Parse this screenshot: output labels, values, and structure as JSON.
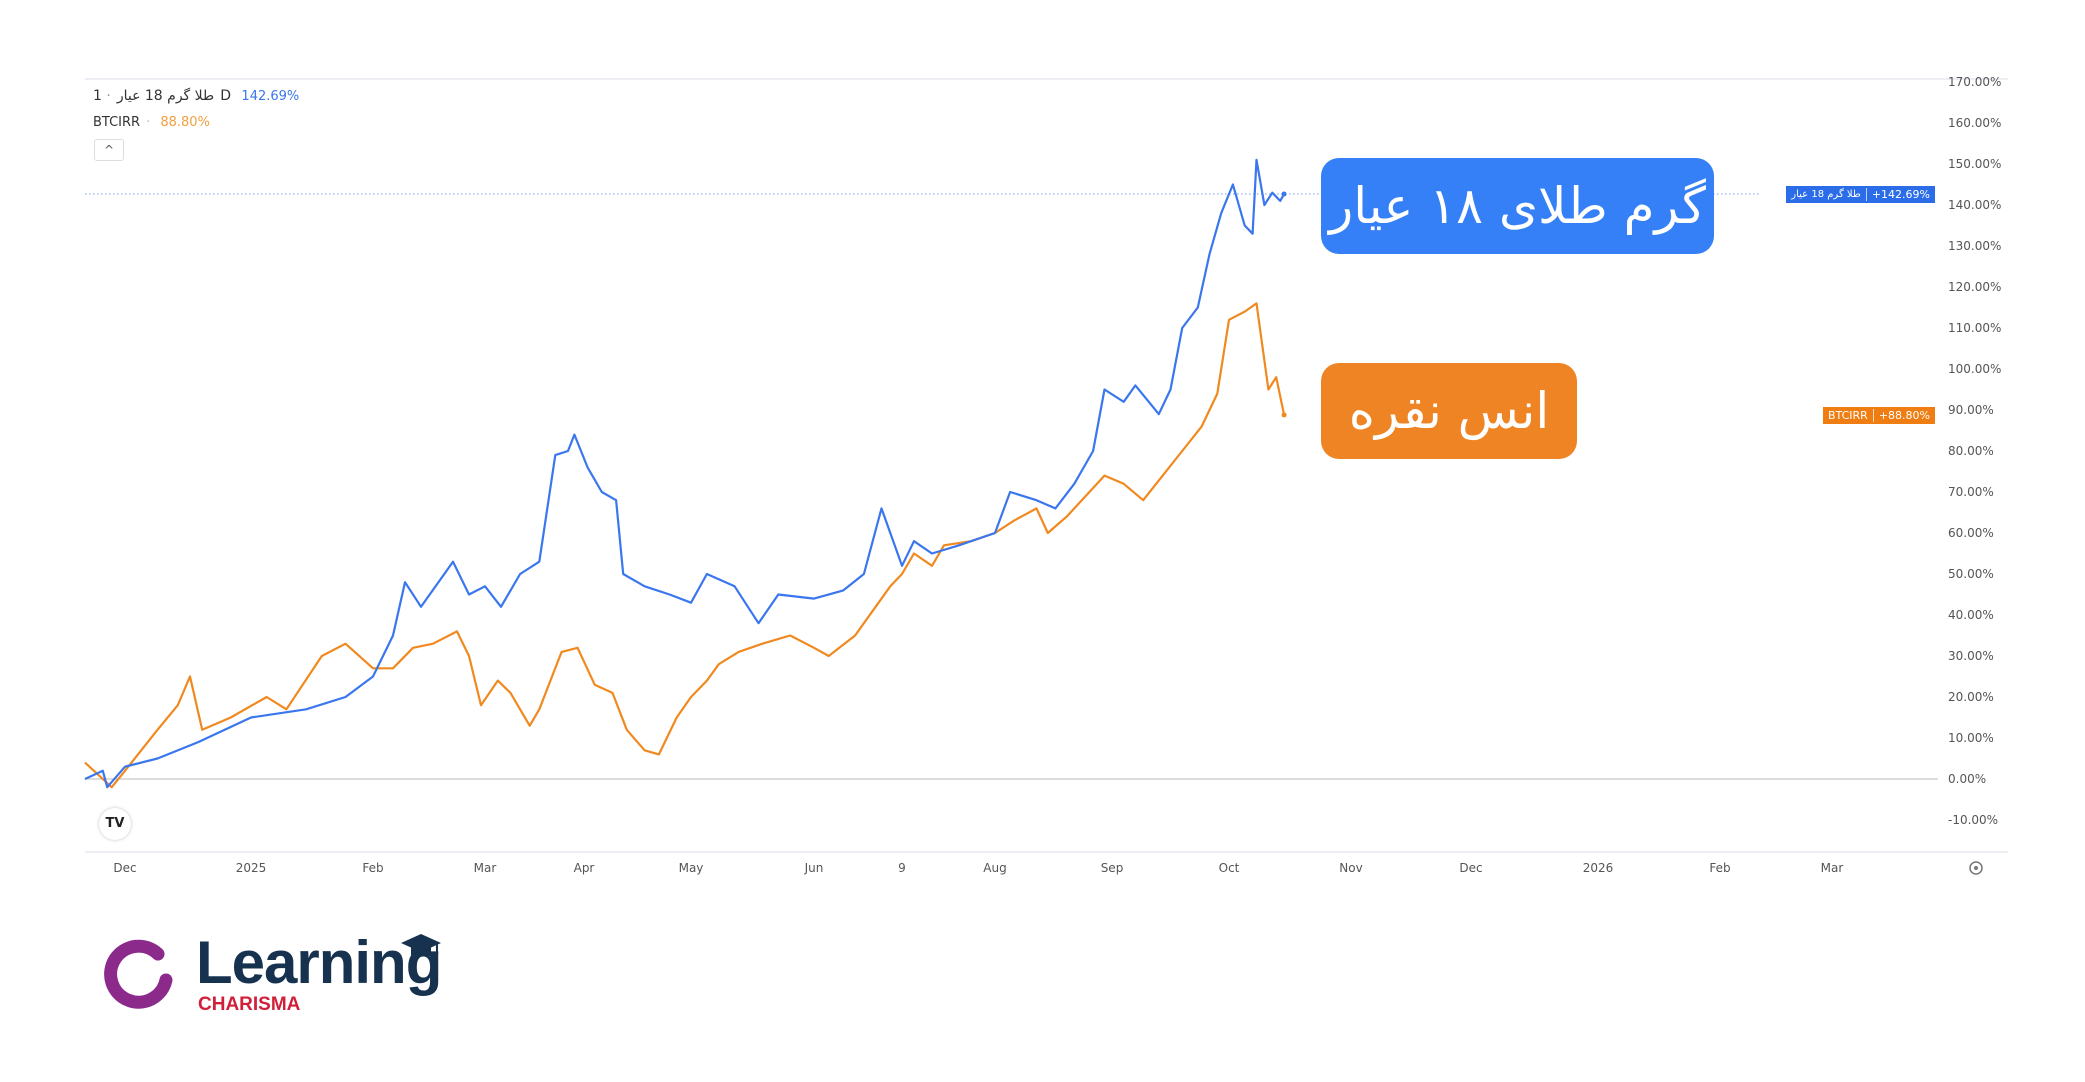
{
  "legend": {
    "series1_name": "طلا گرم 18 عیار",
    "interval": "1D",
    "series1_value": "142.69%",
    "series2_name": "BTCIRR",
    "series2_value": "88.80%",
    "collapse_icon": "chevron-up-icon"
  },
  "callouts": {
    "gold": "گرم طلای ۱۸ عیار",
    "silver": "انس نقره"
  },
  "price_tags": {
    "gold_name": "طلا گرم 18 عیار",
    "gold_value": "+142.69%",
    "btc_name": "BTCIRR",
    "btc_value": "+88.80%"
  },
  "colors": {
    "gold": "#3a76ee",
    "btc": "#f0891f",
    "gold_callout": "#3580f6",
    "silver_callout": "#ef8424"
  },
  "logo": {
    "word": "Learning",
    "sub": "CHARISMA"
  },
  "tv_logo": "TV",
  "chart_data": {
    "type": "line",
    "ylabel": "",
    "ylim": [
      -10,
      170
    ],
    "y_unit": "%",
    "y_ticks": [
      "170.00%",
      "160.00%",
      "150.00%",
      "140.00%",
      "130.00%",
      "120.00%",
      "110.00%",
      "100.00%",
      "90.00%",
      "80.00%",
      "70.00%",
      "60.00%",
      "50.00%",
      "40.00%",
      "30.00%",
      "20.00%",
      "10.00%",
      "0.00%",
      "-10.00%"
    ],
    "x_ticks": [
      "Dec",
      "2025",
      "Feb",
      "Mar",
      "Apr",
      "May",
      "Jun",
      "9",
      "Aug",
      "Sep",
      "Oct",
      "Nov",
      "Dec",
      "2026",
      "Feb",
      "Mar"
    ],
    "x_tick_dates": [
      "2024-12-01",
      "2025-01-01",
      "2025-02-01",
      "2025-03-01",
      "2025-04-01",
      "2025-05-01",
      "2025-06-01",
      "2025-07-01",
      "2025-08-01",
      "2025-09-01",
      "2025-10-01",
      "2025-11-01",
      "2025-12-01",
      "2026-01-01",
      "2026-02-01",
      "2026-03-01"
    ],
    "grid": false,
    "series": [
      {
        "name": "طلا گرم 18 عیار",
        "color": "#3a76ee",
        "last": 142.69,
        "points": [
          [
            "2024-11-22",
            0
          ],
          [
            "2024-11-26",
            2
          ],
          [
            "2024-11-27",
            -2
          ],
          [
            "2024-12-01",
            3
          ],
          [
            "2024-12-09",
            5
          ],
          [
            "2024-12-19",
            9
          ],
          [
            "2025-01-01",
            15
          ],
          [
            "2025-01-15",
            17
          ],
          [
            "2025-01-25",
            20
          ],
          [
            "2025-02-01",
            25
          ],
          [
            "2025-02-06",
            35
          ],
          [
            "2025-02-09",
            48
          ],
          [
            "2025-02-13",
            42
          ],
          [
            "2025-02-21",
            53
          ],
          [
            "2025-02-25",
            45
          ],
          [
            "2025-03-01",
            47
          ],
          [
            "2025-03-06",
            42
          ],
          [
            "2025-03-12",
            50
          ],
          [
            "2025-03-18",
            53
          ],
          [
            "2025-03-23",
            79
          ],
          [
            "2025-03-27",
            80
          ],
          [
            "2025-03-29",
            84
          ],
          [
            "2025-04-02",
            76
          ],
          [
            "2025-04-06",
            70
          ],
          [
            "2025-04-10",
            68
          ],
          [
            "2025-04-12",
            50
          ],
          [
            "2025-04-18",
            47
          ],
          [
            "2025-04-25",
            45
          ],
          [
            "2025-05-01",
            43
          ],
          [
            "2025-05-05",
            50
          ],
          [
            "2025-05-12",
            47
          ],
          [
            "2025-05-18",
            38
          ],
          [
            "2025-05-23",
            45
          ],
          [
            "2025-06-01",
            44
          ],
          [
            "2025-06-11",
            46
          ],
          [
            "2025-06-18",
            50
          ],
          [
            "2025-06-24",
            66
          ],
          [
            "2025-07-01",
            52
          ],
          [
            "2025-07-05",
            58
          ],
          [
            "2025-07-11",
            55
          ],
          [
            "2025-07-20",
            57
          ],
          [
            "2025-08-01",
            60
          ],
          [
            "2025-08-05",
            70
          ],
          [
            "2025-08-12",
            68
          ],
          [
            "2025-08-17",
            66
          ],
          [
            "2025-08-22",
            72
          ],
          [
            "2025-08-27",
            80
          ],
          [
            "2025-08-30",
            95
          ],
          [
            "2025-09-04",
            92
          ],
          [
            "2025-09-07",
            96
          ],
          [
            "2025-09-13",
            89
          ],
          [
            "2025-09-16",
            95
          ],
          [
            "2025-09-19",
            110
          ],
          [
            "2025-09-23",
            115
          ],
          [
            "2025-09-26",
            128
          ],
          [
            "2025-09-29",
            138
          ],
          [
            "2025-10-02",
            145
          ],
          [
            "2025-10-05",
            135
          ],
          [
            "2025-10-07",
            133
          ],
          [
            "2025-10-08",
            151
          ],
          [
            "2025-10-10",
            140
          ],
          [
            "2025-10-12",
            143
          ],
          [
            "2025-10-14",
            141
          ],
          [
            "2025-10-15",
            142.69
          ]
        ]
      },
      {
        "name": "BTCIRR",
        "color": "#f0891f",
        "last": 88.8,
        "points": [
          [
            "2024-11-22",
            4
          ],
          [
            "2024-11-26",
            0
          ],
          [
            "2024-11-28",
            -2
          ],
          [
            "2024-12-01",
            2
          ],
          [
            "2024-12-09",
            12
          ],
          [
            "2024-12-14",
            18
          ],
          [
            "2024-12-17",
            25
          ],
          [
            "2024-12-20",
            12
          ],
          [
            "2024-12-27",
            15
          ],
          [
            "2025-01-05",
            20
          ],
          [
            "2025-01-10",
            17
          ],
          [
            "2025-01-19",
            30
          ],
          [
            "2025-01-25",
            33
          ],
          [
            "2025-02-01",
            27
          ],
          [
            "2025-02-06",
            27
          ],
          [
            "2025-02-11",
            32
          ],
          [
            "2025-02-16",
            33
          ],
          [
            "2025-02-22",
            36
          ],
          [
            "2025-02-25",
            30
          ],
          [
            "2025-02-28",
            18
          ],
          [
            "2025-03-05",
            24
          ],
          [
            "2025-03-09",
            21
          ],
          [
            "2025-03-15",
            13
          ],
          [
            "2025-03-18",
            17
          ],
          [
            "2025-03-25",
            31
          ],
          [
            "2025-03-30",
            32
          ],
          [
            "2025-04-04",
            23
          ],
          [
            "2025-04-09",
            21
          ],
          [
            "2025-04-13",
            12
          ],
          [
            "2025-04-18",
            7
          ],
          [
            "2025-04-22",
            6
          ],
          [
            "2025-04-27",
            15
          ],
          [
            "2025-05-01",
            20
          ],
          [
            "2025-05-05",
            24
          ],
          [
            "2025-05-08",
            28
          ],
          [
            "2025-05-13",
            31
          ],
          [
            "2025-05-19",
            33
          ],
          [
            "2025-05-26",
            35
          ],
          [
            "2025-06-01",
            32
          ],
          [
            "2025-06-06",
            30
          ],
          [
            "2025-06-15",
            35
          ],
          [
            "2025-06-22",
            42
          ],
          [
            "2025-06-27",
            47
          ],
          [
            "2025-07-01",
            50
          ],
          [
            "2025-07-05",
            55
          ],
          [
            "2025-07-11",
            52
          ],
          [
            "2025-07-15",
            57
          ],
          [
            "2025-07-24",
            58
          ],
          [
            "2025-08-01",
            60
          ],
          [
            "2025-08-06",
            63
          ],
          [
            "2025-08-12",
            66
          ],
          [
            "2025-08-15",
            60
          ],
          [
            "2025-08-20",
            64
          ],
          [
            "2025-08-26",
            70
          ],
          [
            "2025-08-30",
            74
          ],
          [
            "2025-09-04",
            72
          ],
          [
            "2025-09-09",
            68
          ],
          [
            "2025-09-14",
            74
          ],
          [
            "2025-09-19",
            80
          ],
          [
            "2025-09-24",
            86
          ],
          [
            "2025-09-28",
            94
          ],
          [
            "2025-10-01",
            112
          ],
          [
            "2025-10-05",
            114
          ],
          [
            "2025-10-08",
            116
          ],
          [
            "2025-10-11",
            95
          ],
          [
            "2025-10-13",
            98
          ],
          [
            "2025-10-15",
            88.8
          ]
        ]
      }
    ]
  }
}
